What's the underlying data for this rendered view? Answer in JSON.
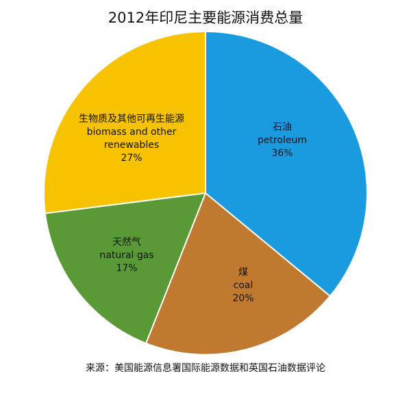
{
  "chart_data": {
    "type": "pie",
    "title": "2012年印尼主要能源消费总量",
    "source": "来源：美国能源信息署国际能源数据和英国石油数据评论",
    "slices": [
      {
        "zh": "石油",
        "en": "petroleum",
        "value": 36,
        "pct": "36%",
        "color": "#1a9be0"
      },
      {
        "zh": "煤",
        "en": "coal",
        "value": 20,
        "pct": "20%",
        "color": "#c07a30"
      },
      {
        "zh": "天然气",
        "en": "natural gas",
        "value": 17,
        "pct": "17%",
        "color": "#5a9a36"
      },
      {
        "zh": "生物质及其他可再生能源",
        "en": "biomass and other\nrenewables",
        "value": 27,
        "pct": "27%",
        "color": "#f7c300"
      }
    ]
  }
}
